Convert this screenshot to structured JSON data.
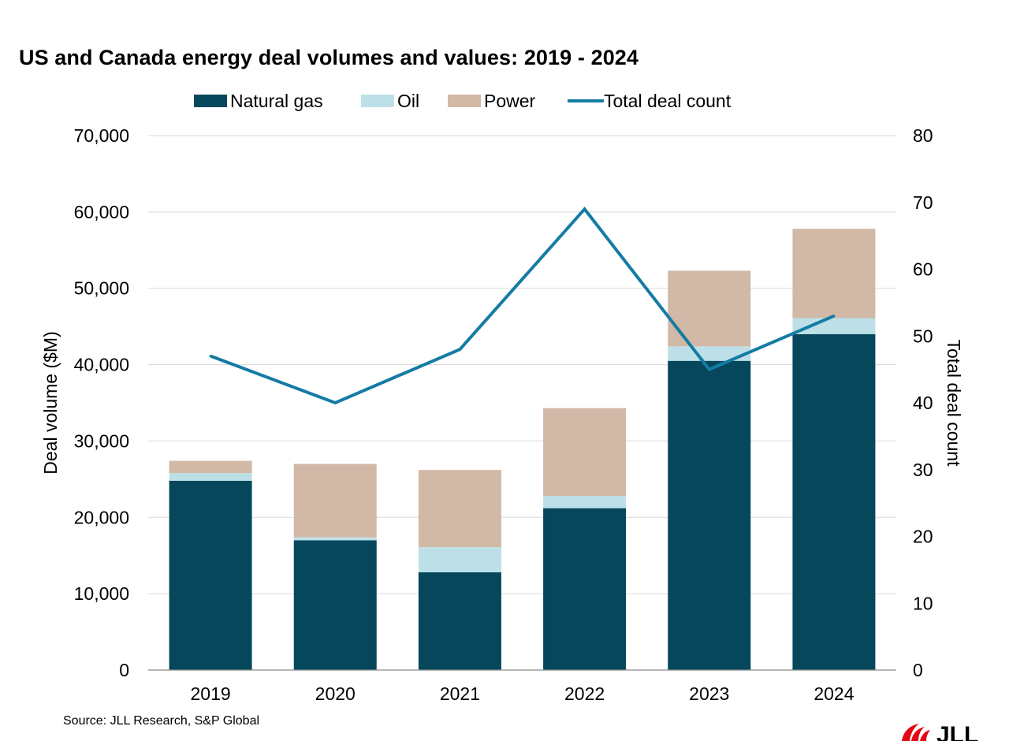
{
  "chart_data": {
    "type": "bar",
    "stacked": true,
    "title": "US and Canada energy deal volumes and values: 2019 - 2024",
    "categories": [
      "2019",
      "2020",
      "2021",
      "2022",
      "2023",
      "2024"
    ],
    "series": [
      {
        "name": "Natural gas",
        "axis": "left",
        "color": "#06475c",
        "values": [
          24800,
          17000,
          12800,
          21200,
          40500,
          44000
        ]
      },
      {
        "name": "Oil",
        "axis": "left",
        "color": "#bde0e8",
        "values": [
          1000,
          400,
          3300,
          1600,
          1900,
          2100
        ]
      },
      {
        "name": "Power",
        "axis": "left",
        "color": "#d2b8a6",
        "values": [
          1600,
          9600,
          10100,
          11500,
          9900,
          11700
        ]
      },
      {
        "name": "Total deal count",
        "type": "line",
        "axis": "right",
        "color": "#147ca3",
        "values": [
          47,
          40,
          48,
          69,
          45,
          53
        ]
      }
    ],
    "ylabel": "Deal volume ($M)",
    "ylim": [
      0,
      70000
    ],
    "yticks": [
      "0",
      "10,000",
      "20,000",
      "30,000",
      "40,000",
      "50,000",
      "60,000",
      "70,000"
    ],
    "y2label": "Total deal count",
    "y2lim": [
      0,
      80
    ],
    "y2ticks": [
      "0",
      "10",
      "20",
      "30",
      "40",
      "50",
      "60",
      "70",
      "80"
    ],
    "legend_position": "top",
    "grid": true
  },
  "source": "Source: JLL Research, S&P Global",
  "logo_text": "JLL"
}
